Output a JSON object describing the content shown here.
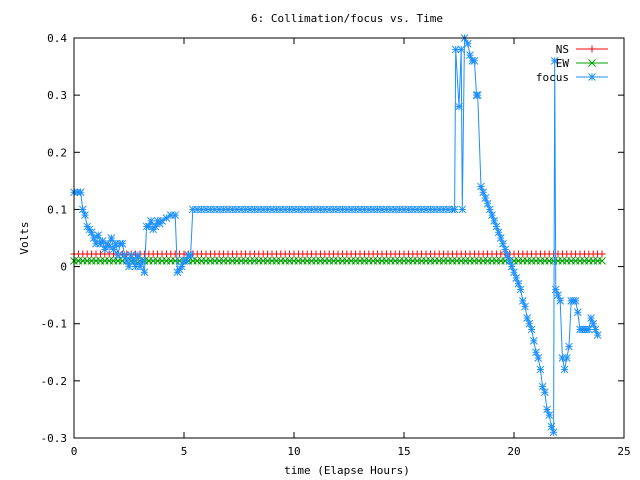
{
  "chart_data": {
    "type": "line",
    "title": "6: Collimation/focus vs. Time",
    "xlabel": "time (Elapse Hours)",
    "ylabel": "Volts",
    "xlim": [
      0,
      25
    ],
    "ylim": [
      -0.3,
      0.4
    ],
    "xticks": [
      0,
      5,
      10,
      15,
      20,
      25
    ],
    "yticks": [
      0.4,
      0.3,
      0.2,
      0.1,
      0,
      -0.1,
      -0.2,
      -0.3
    ],
    "xtick_labels": [
      "0",
      "5",
      "10",
      "15",
      "20",
      "25"
    ],
    "ytick_labels": [
      "0.4",
      "0.3",
      "0.2",
      "0.1",
      "0",
      "-0.1",
      "-0.2",
      "-0.3"
    ],
    "grid": false,
    "legend_position": "top-right",
    "series": [
      {
        "name": "NS",
        "color": "#ff0000",
        "marker": "plus",
        "x_start": 0,
        "x_end": 24,
        "x_step": 0.2,
        "value": 0.022
      },
      {
        "name": "EW",
        "color": "#00a000",
        "marker": "cross",
        "x_start": 0,
        "x_end": 24,
        "x_step": 0.2,
        "value": 0.01
      },
      {
        "name": "focus",
        "color": "#1e90ff",
        "marker": "star",
        "points": [
          [
            0.0,
            0.13
          ],
          [
            0.15,
            0.13
          ],
          [
            0.3,
            0.13
          ],
          [
            0.4,
            0.1
          ],
          [
            0.5,
            0.09
          ],
          [
            0.6,
            0.07
          ],
          [
            0.7,
            0.065
          ],
          [
            0.8,
            0.06
          ],
          [
            0.9,
            0.05
          ],
          [
            1.0,
            0.04
          ],
          [
            1.1,
            0.055
          ],
          [
            1.2,
            0.04
          ],
          [
            1.3,
            0.045
          ],
          [
            1.4,
            0.03
          ],
          [
            1.5,
            0.04
          ],
          [
            1.6,
            0.035
          ],
          [
            1.7,
            0.05
          ],
          [
            1.8,
            0.03
          ],
          [
            1.9,
            0.04
          ],
          [
            2.0,
            0.02
          ],
          [
            2.1,
            0.04
          ],
          [
            2.2,
            0.04
          ],
          [
            2.3,
            0.02
          ],
          [
            2.4,
            0.01
          ],
          [
            2.5,
            0.0
          ],
          [
            2.6,
            0.02
          ],
          [
            2.7,
            0.01
          ],
          [
            2.8,
            0.0
          ],
          [
            2.9,
            0.02
          ],
          [
            3.0,
            0.0
          ],
          [
            3.1,
            0.01
          ],
          [
            3.2,
            -0.01
          ],
          [
            3.3,
            0.07
          ],
          [
            3.4,
            0.07
          ],
          [
            3.5,
            0.08
          ],
          [
            3.6,
            0.065
          ],
          [
            3.7,
            0.07
          ],
          [
            3.8,
            0.08
          ],
          [
            3.9,
            0.075
          ],
          [
            4.0,
            0.08
          ],
          [
            4.2,
            0.085
          ],
          [
            4.4,
            0.09
          ],
          [
            4.6,
            0.09
          ],
          [
            4.7,
            -0.01
          ],
          [
            4.8,
            -0.005
          ],
          [
            4.9,
            0.0
          ],
          [
            5.0,
            0.01
          ],
          [
            5.1,
            0.01
          ],
          [
            5.2,
            0.02
          ],
          [
            5.3,
            0.02
          ],
          [
            5.4,
            0.1
          ],
          [
            17.3,
            0.1
          ],
          [
            17.35,
            0.38
          ],
          [
            17.5,
            0.28
          ],
          [
            17.6,
            0.38
          ],
          [
            17.65,
            0.1
          ],
          [
            17.75,
            0.4
          ],
          [
            17.9,
            0.39
          ],
          [
            18.0,
            0.37
          ],
          [
            18.1,
            0.36
          ],
          [
            18.2,
            0.36
          ],
          [
            18.3,
            0.3
          ],
          [
            18.35,
            0.3
          ],
          [
            18.5,
            0.14
          ],
          [
            18.6,
            0.13
          ],
          [
            18.7,
            0.12
          ],
          [
            18.8,
            0.11
          ],
          [
            18.9,
            0.1
          ],
          [
            19.0,
            0.09
          ],
          [
            19.1,
            0.08
          ],
          [
            19.2,
            0.07
          ],
          [
            19.3,
            0.06
          ],
          [
            19.4,
            0.05
          ],
          [
            19.5,
            0.04
          ],
          [
            19.6,
            0.03
          ],
          [
            19.7,
            0.02
          ],
          [
            19.8,
            0.01
          ],
          [
            19.9,
            0.0
          ],
          [
            20.0,
            -0.01
          ],
          [
            20.1,
            -0.02
          ],
          [
            20.2,
            -0.03
          ],
          [
            20.3,
            -0.04
          ],
          [
            20.4,
            -0.06
          ],
          [
            20.5,
            -0.07
          ],
          [
            20.6,
            -0.09
          ],
          [
            20.7,
            -0.1
          ],
          [
            20.8,
            -0.11
          ],
          [
            20.9,
            -0.13
          ],
          [
            21.0,
            -0.15
          ],
          [
            21.1,
            -0.16
          ],
          [
            21.2,
            -0.18
          ],
          [
            21.3,
            -0.21
          ],
          [
            21.4,
            -0.22
          ],
          [
            21.5,
            -0.25
          ],
          [
            21.6,
            -0.26
          ],
          [
            21.7,
            -0.28
          ],
          [
            21.8,
            -0.29
          ],
          [
            21.85,
            0.36
          ],
          [
            21.9,
            -0.04
          ],
          [
            22.0,
            -0.05
          ],
          [
            22.1,
            -0.06
          ],
          [
            22.2,
            -0.16
          ],
          [
            22.3,
            -0.18
          ],
          [
            22.4,
            -0.16
          ],
          [
            22.5,
            -0.14
          ],
          [
            22.6,
            -0.06
          ],
          [
            22.7,
            -0.06
          ],
          [
            22.8,
            -0.06
          ],
          [
            22.9,
            -0.08
          ],
          [
            23.0,
            -0.11
          ],
          [
            23.1,
            -0.11
          ],
          [
            23.2,
            -0.11
          ],
          [
            23.3,
            -0.11
          ],
          [
            23.4,
            -0.11
          ],
          [
            23.5,
            -0.09
          ],
          [
            23.6,
            -0.1
          ],
          [
            23.7,
            -0.11
          ],
          [
            23.8,
            -0.12
          ]
        ]
      }
    ]
  }
}
